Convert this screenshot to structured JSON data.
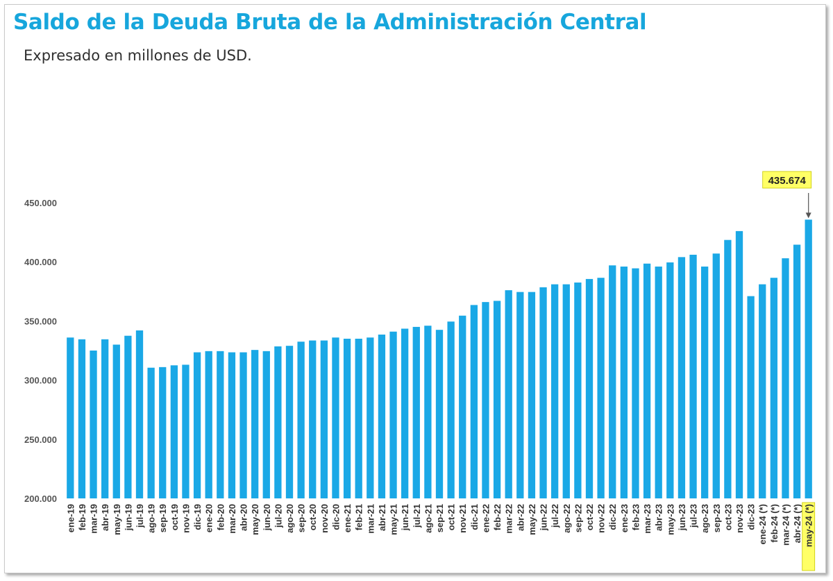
{
  "header": {
    "title": "Saldo de la Deuda Bruta de la Administración Central",
    "subtitle": "Expresado en millones de USD."
  },
  "colors": {
    "bar": "#1aa8e6",
    "highlight": "#ffff66",
    "title": "#17a6dc"
  },
  "chart_data": {
    "type": "bar",
    "title": "Saldo de la Deuda Bruta de la Administración Central",
    "subtitle": "Expresado en millones de USD.",
    "ylim": [
      200000,
      450000
    ],
    "yticks": [
      "200.000",
      "250.000",
      "300.000",
      "350.000",
      "400.000",
      "450.000"
    ],
    "ytick_values": [
      200000,
      250000,
      300000,
      350000,
      400000,
      450000
    ],
    "grid": false,
    "categories": [
      "ene-19",
      "feb-19",
      "mar-19",
      "abr-19",
      "may-19",
      "jun-19",
      "jul-19",
      "ago-19",
      "sep-19",
      "oct-19",
      "nov-19",
      "dic-19",
      "ene-20",
      "feb-20",
      "mar-20",
      "abr-20",
      "may-20",
      "jun-20",
      "jul-20",
      "ago-20",
      "sep-20",
      "oct-20",
      "nov-20",
      "dic-20",
      "ene-21",
      "feb-21",
      "mar-21",
      "abr-21",
      "may-21",
      "jun-21",
      "jul-21",
      "ago-21",
      "sep-21",
      "oct-21",
      "nov-21",
      "dic-21",
      "ene-22",
      "feb-22",
      "mar-22",
      "abr-22",
      "may-22",
      "jun-22",
      "jul-22",
      "ago-22",
      "sep-22",
      "oct-22",
      "nov-22",
      "dic-22",
      "ene-23",
      "feb-23",
      "mar-23",
      "abr-23",
      "may-23",
      "jun-23",
      "jul-23",
      "ago-23",
      "sep-23",
      "oct-23",
      "nov-23",
      "dic-23",
      "ene-24 (*)",
      "feb-24 (*)",
      "mar-24 (*)",
      "abr-24 (*)",
      "may-24 (*)"
    ],
    "values": [
      336000,
      334500,
      325000,
      334500,
      330000,
      337500,
      342000,
      310500,
      311000,
      312500,
      313000,
      323500,
      324500,
      324500,
      323500,
      323500,
      325500,
      324500,
      328500,
      329000,
      332500,
      333500,
      333500,
      336000,
      335000,
      335000,
      336000,
      338500,
      341000,
      343500,
      345000,
      346000,
      342500,
      349500,
      354500,
      363500,
      366000,
      367000,
      376000,
      374500,
      374500,
      378500,
      381000,
      381000,
      382500,
      385500,
      386500,
      397000,
      396000,
      394500,
      398500,
      396000,
      399500,
      404000,
      406000,
      396000,
      407000,
      418500,
      426000,
      371000,
      381000,
      386500,
      403000,
      414500,
      435674
    ],
    "highlighted_category": "may-24 (*)",
    "annotation": {
      "label": "435.674",
      "category": "may-24 (*)"
    }
  }
}
